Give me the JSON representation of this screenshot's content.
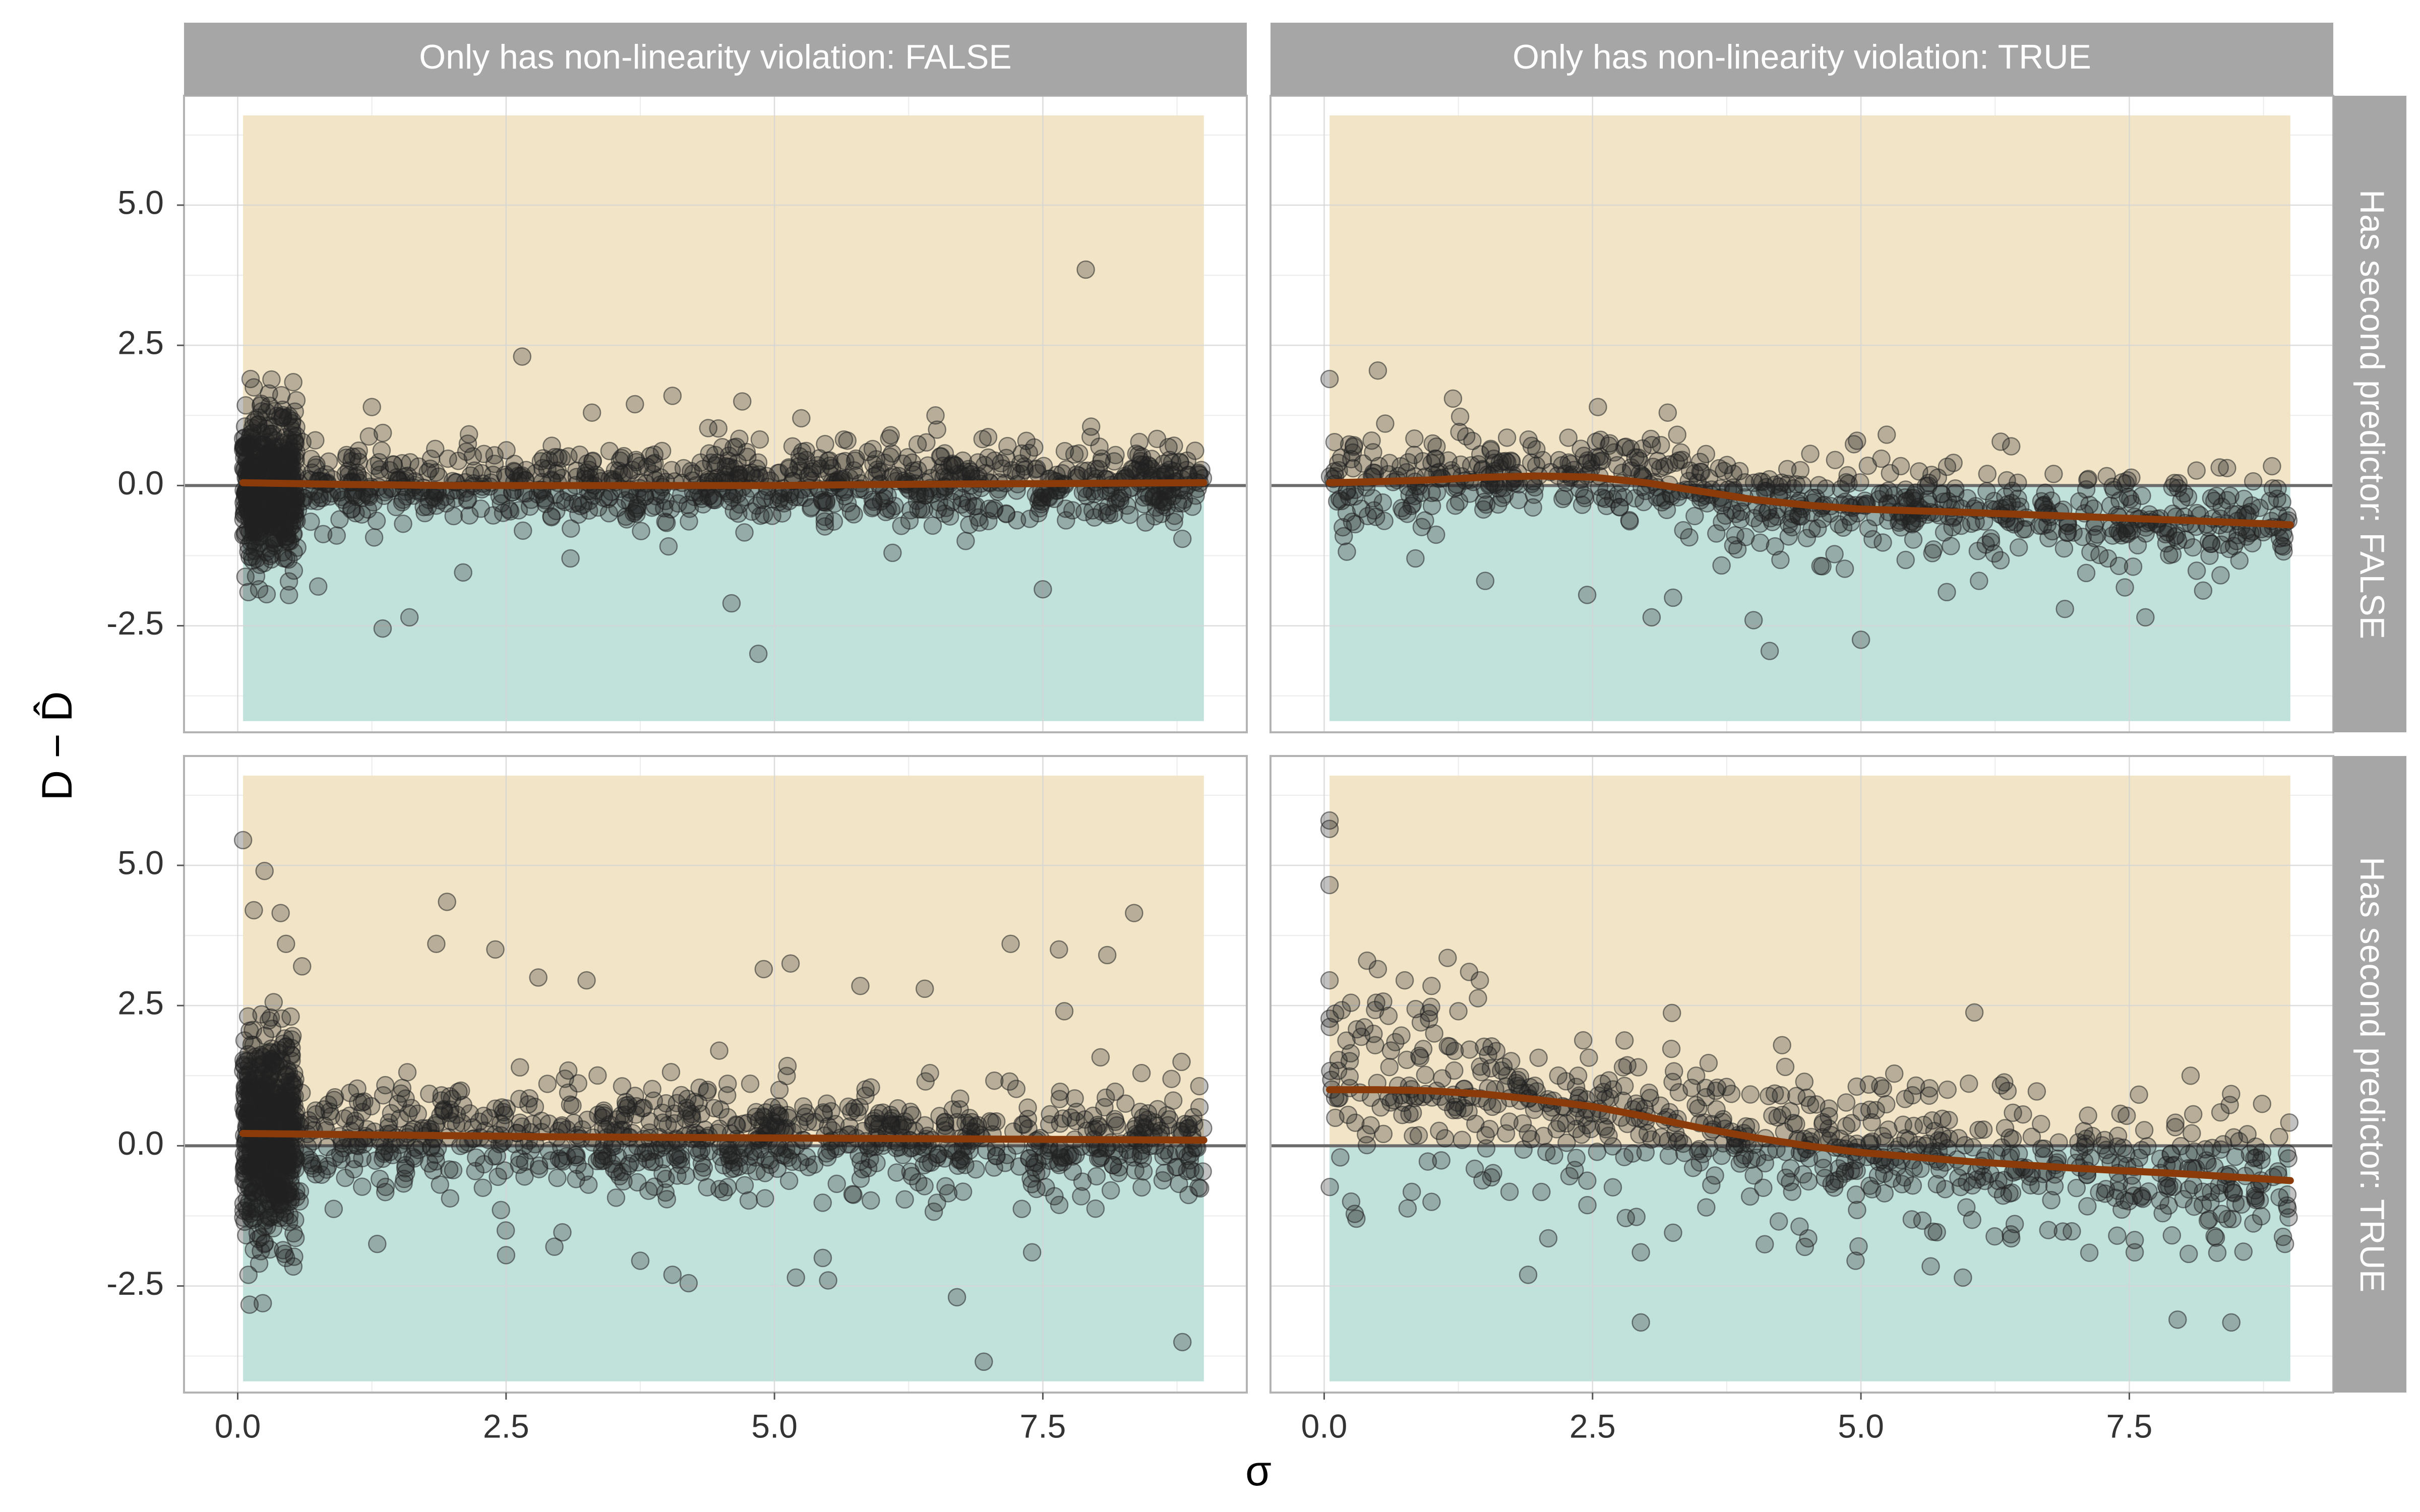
{
  "chart_data": {
    "type": "scatter",
    "ylabel": "D − D̂",
    "xlabel": "σ",
    "xlim": [
      -0.5,
      9.4
    ],
    "ylim": [
      -4.4,
      6.95
    ],
    "x_ticks": [
      0,
      2.5,
      5,
      7.5
    ],
    "x_tick_labels": [
      "0.0",
      "2.5",
      "5.0",
      "7.5"
    ],
    "y_ticks": [
      -2.5,
      0,
      2.5,
      5
    ],
    "y_tick_labels": [
      "-2.5",
      "0.0",
      "2.5",
      "5.0"
    ],
    "grid": true,
    "legend": "none",
    "reference_line": {
      "y": 0,
      "color": "#6b6b6b"
    },
    "bands": [
      {
        "name": "over",
        "y": [
          0,
          6.6
        ],
        "x": [
          0.05,
          9.0
        ],
        "color": "#f2e4c6"
      },
      {
        "name": "under",
        "y": [
          -4.2,
          0
        ],
        "x": [
          0.05,
          9.0
        ],
        "color": "#c1e1db"
      }
    ],
    "point_color": "#222222",
    "trend_color": "#8b3a0a",
    "col_facet_labels": [
      "Only has non-linearity violation: FALSE",
      "Only has non-linearity violation: TRUE"
    ],
    "row_facet_labels": [
      "Has second predictor: FALSE",
      "Has second predictor: TRUE"
    ],
    "panels": [
      {
        "row": 0,
        "col": 0,
        "trend": {
          "x": [
            0.05,
            1,
            2,
            3,
            4,
            5,
            6,
            7,
            8,
            9
          ],
          "y": [
            0.05,
            0.02,
            0.0,
            0.0,
            0.0,
            0.0,
            0.02,
            0.03,
            0.04,
            0.05
          ]
        },
        "cloud": {
          "n": 1400,
          "x_dist": "sqrt",
          "spread": [
            0.35,
            0.35
          ],
          "spread_small_sigma": 0.65
        },
        "points": [
          {
            "x": 7.9,
            "y": 3.85
          },
          {
            "x": 2.65,
            "y": 2.3
          },
          {
            "x": 0.12,
            "y": 1.9
          },
          {
            "x": 0.15,
            "y": 1.75
          },
          {
            "x": 0.1,
            "y": -1.9
          },
          {
            "x": 0.2,
            "y": -1.85
          },
          {
            "x": 1.35,
            "y": -2.55
          },
          {
            "x": 1.6,
            "y": -2.35
          },
          {
            "x": 4.6,
            "y": -2.1
          },
          {
            "x": 4.85,
            "y": -3.0
          },
          {
            "x": 7.5,
            "y": -1.85
          },
          {
            "x": 4.05,
            "y": 1.6
          },
          {
            "x": 3.7,
            "y": 1.45
          },
          {
            "x": 4.7,
            "y": 1.5
          },
          {
            "x": 6.5,
            "y": 1.25
          },
          {
            "x": 5.25,
            "y": 1.2
          },
          {
            "x": 2.1,
            "y": -1.55
          },
          {
            "x": 3.1,
            "y": -1.3
          },
          {
            "x": 6.1,
            "y": -1.2
          },
          {
            "x": 8.8,
            "y": -0.95
          },
          {
            "x": 0.75,
            "y": -1.8
          },
          {
            "x": 1.25,
            "y": 1.4
          },
          {
            "x": 7.95,
            "y": 1.05
          },
          {
            "x": 3.3,
            "y": 1.3
          }
        ]
      },
      {
        "row": 0,
        "col": 1,
        "trend": {
          "x": [
            0.05,
            0.5,
            1,
            1.5,
            2,
            2.5,
            3,
            3.5,
            4,
            4.5,
            5,
            6,
            7,
            8,
            9
          ],
          "y": [
            0.05,
            0.07,
            0.1,
            0.15,
            0.17,
            0.15,
            0.05,
            -0.1,
            -0.25,
            -0.35,
            -0.42,
            -0.48,
            -0.55,
            -0.62,
            -0.7
          ]
        },
        "cloud": {
          "n": 700,
          "x_dist": "uniform",
          "spread": [
            0.5,
            0.3
          ],
          "spread_small_sigma": 0.5
        },
        "points": [
          {
            "x": 0.05,
            "y": 1.9
          },
          {
            "x": 0.5,
            "y": 2.05
          },
          {
            "x": 2.55,
            "y": 1.4
          },
          {
            "x": 1.2,
            "y": 1.55
          },
          {
            "x": 3.25,
            "y": -2.0
          },
          {
            "x": 3.05,
            "y": -2.35
          },
          {
            "x": 4.15,
            "y": -2.95
          },
          {
            "x": 5.0,
            "y": -2.75
          },
          {
            "x": 4.0,
            "y": -2.4
          },
          {
            "x": 7.65,
            "y": -2.35
          },
          {
            "x": 6.9,
            "y": -2.2
          },
          {
            "x": 2.45,
            "y": -1.95
          },
          {
            "x": 1.5,
            "y": -1.7
          },
          {
            "x": 6.1,
            "y": -1.7
          },
          {
            "x": 5.8,
            "y": -1.9
          },
          {
            "x": 8.35,
            "y": -1.6
          },
          {
            "x": 0.85,
            "y": -1.3
          },
          {
            "x": 3.2,
            "y": 1.3
          },
          {
            "x": 6.4,
            "y": 0.7
          },
          {
            "x": 7.3,
            "y": -1.3
          }
        ]
      },
      {
        "row": 1,
        "col": 0,
        "trend": {
          "x": [
            0.05,
            1,
            2,
            3,
            4,
            5,
            6,
            7,
            8,
            9
          ],
          "y": [
            0.22,
            0.2,
            0.18,
            0.16,
            0.15,
            0.14,
            0.13,
            0.12,
            0.11,
            0.1
          ]
        },
        "cloud": {
          "n": 1400,
          "x_dist": "sqrt",
          "spread": [
            0.5,
            0.45
          ],
          "spread_small_sigma": 0.9
        },
        "points": [
          {
            "x": 0.05,
            "y": 5.45
          },
          {
            "x": 0.25,
            "y": 4.9
          },
          {
            "x": 0.15,
            "y": 4.2
          },
          {
            "x": 0.4,
            "y": 4.15
          },
          {
            "x": 1.95,
            "y": 4.35
          },
          {
            "x": 8.35,
            "y": 4.15
          },
          {
            "x": 0.45,
            "y": 3.6
          },
          {
            "x": 1.85,
            "y": 3.6
          },
          {
            "x": 2.4,
            "y": 3.5
          },
          {
            "x": 7.2,
            "y": 3.6
          },
          {
            "x": 7.65,
            "y": 3.5
          },
          {
            "x": 8.1,
            "y": 3.4
          },
          {
            "x": 2.8,
            "y": 3.0
          },
          {
            "x": 3.25,
            "y": 2.95
          },
          {
            "x": 5.15,
            "y": 3.25
          },
          {
            "x": 4.9,
            "y": 3.15
          },
          {
            "x": 5.8,
            "y": 2.85
          },
          {
            "x": 6.4,
            "y": 2.8
          },
          {
            "x": 7.7,
            "y": 2.4
          },
          {
            "x": 0.6,
            "y": 3.2
          },
          {
            "x": 6.95,
            "y": -3.85
          },
          {
            "x": 8.8,
            "y": -3.5
          },
          {
            "x": 6.7,
            "y": -2.7
          },
          {
            "x": 4.2,
            "y": -2.45
          },
          {
            "x": 5.2,
            "y": -2.35
          },
          {
            "x": 5.5,
            "y": -2.4
          },
          {
            "x": 5.45,
            "y": -2.0
          },
          {
            "x": 4.05,
            "y": -2.3
          },
          {
            "x": 0.1,
            "y": -2.3
          },
          {
            "x": 0.2,
            "y": -2.1
          },
          {
            "x": 0.45,
            "y": -2.0
          },
          {
            "x": 2.5,
            "y": -1.95
          },
          {
            "x": 1.3,
            "y": -1.75
          },
          {
            "x": 3.75,
            "y": -2.05
          },
          {
            "x": 7.4,
            "y": -1.9
          },
          {
            "x": 2.95,
            "y": -1.8
          }
        ]
      },
      {
        "row": 1,
        "col": 1,
        "trend": {
          "x": [
            0.05,
            0.5,
            1,
            1.5,
            2,
            2.5,
            3,
            3.5,
            4,
            4.5,
            5,
            6,
            7,
            8,
            9
          ],
          "y": [
            1.0,
            1.0,
            0.98,
            0.92,
            0.82,
            0.7,
            0.52,
            0.32,
            0.15,
            0.0,
            -0.12,
            -0.28,
            -0.4,
            -0.5,
            -0.62
          ]
        },
        "cloud": {
          "n": 700,
          "x_dist": "uniform",
          "spread": [
            0.85,
            0.4
          ],
          "spread_small_sigma": 0.9
        },
        "points": [
          {
            "x": 0.05,
            "y": 5.8
          },
          {
            "x": 0.05,
            "y": 5.65
          },
          {
            "x": 0.05,
            "y": 4.65
          },
          {
            "x": 0.05,
            "y": 2.95
          },
          {
            "x": 0.4,
            "y": 3.3
          },
          {
            "x": 0.5,
            "y": 3.15
          },
          {
            "x": 0.75,
            "y": 2.95
          },
          {
            "x": 1.15,
            "y": 3.35
          },
          {
            "x": 1.35,
            "y": 3.1
          },
          {
            "x": 1.45,
            "y": 2.95
          },
          {
            "x": 0.25,
            "y": 2.55
          },
          {
            "x": 1.0,
            "y": 2.85
          },
          {
            "x": 0.9,
            "y": 2.2
          },
          {
            "x": 1.25,
            "y": 2.4
          },
          {
            "x": 2.95,
            "y": -3.15
          },
          {
            "x": 7.95,
            "y": -3.1
          },
          {
            "x": 8.45,
            "y": -3.15
          },
          {
            "x": 1.9,
            "y": -2.3
          },
          {
            "x": 5.95,
            "y": -2.35
          },
          {
            "x": 4.95,
            "y": -2.05
          },
          {
            "x": 2.95,
            "y": -1.9
          },
          {
            "x": 5.65,
            "y": -2.15
          },
          {
            "x": 8.95,
            "y": -1.75
          },
          {
            "x": 7.55,
            "y": -1.9
          },
          {
            "x": 0.3,
            "y": -1.3
          },
          {
            "x": 1.0,
            "y": -1.0
          },
          {
            "x": 3.25,
            "y": -1.55
          },
          {
            "x": 6.4,
            "y": -1.65
          }
        ]
      }
    ]
  }
}
